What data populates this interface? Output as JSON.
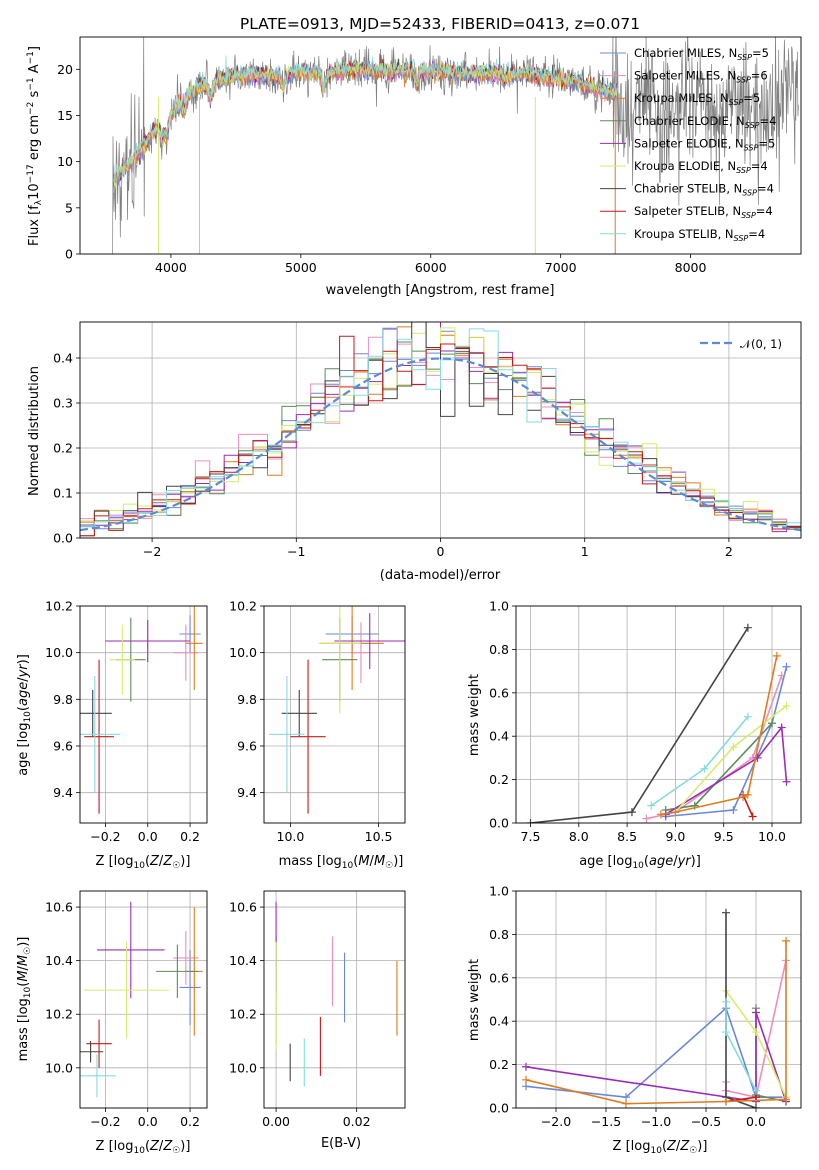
{
  "colors": [
    "#6b88d6",
    "#ea8fc0",
    "#e07b20",
    "#5b8c5b",
    "#9a2db8",
    "#d6ec6a",
    "#444444",
    "#c41a1a",
    "#86dbe0"
  ],
  "chart_data": [
    {
      "id": "spectrum",
      "type": "line",
      "title": "PLATE=0913, MJD=52433, FIBERID=0413, z=0.071",
      "xlabel": "wavelength [Angstrom, rest frame]",
      "ylabel": "Flux [fλ10⁻¹⁷ erg cm⁻² s⁻¹ A⁻¹]",
      "xlim": [
        3300,
        8850
      ],
      "ylim": [
        0,
        23.5
      ],
      "xticks": [
        "4000",
        "5000",
        "6000",
        "7000",
        "8000"
      ],
      "yticks": [
        "0",
        "5",
        "10",
        "15",
        "20"
      ],
      "legend_position": "upper-right",
      "series": [
        {
          "name": "Chabrier MILES, N_SSP=5"
        },
        {
          "name": "Salpeter MILES, N_SSP=6"
        },
        {
          "name": "Kroupa MILES, N_SSP=5"
        },
        {
          "name": "Chabrier ELODIE, N_SSP=4"
        },
        {
          "name": "Salpeter ELODIE, N_SSP=5"
        },
        {
          "name": "Kroupa ELODIE, N_SSP=4"
        },
        {
          "name": "Chabrier STELIB, N_SSP=4"
        },
        {
          "name": "Salpeter STELIB, N_SSP=4"
        },
        {
          "name": "Kroupa STELIB, N_SSP=4"
        }
      ],
      "continuum_points": [
        [
          3550,
          8
        ],
        [
          3700,
          10
        ],
        [
          3850,
          13
        ],
        [
          3950,
          14
        ],
        [
          4050,
          16
        ],
        [
          4200,
          18
        ],
        [
          4400,
          19
        ],
        [
          4600,
          19.5
        ],
        [
          4861,
          19.2
        ],
        [
          5000,
          19.8
        ],
        [
          5175,
          19.5
        ],
        [
          5400,
          20
        ],
        [
          5890,
          19.8
        ],
        [
          6000,
          19.8
        ],
        [
          6300,
          19.6
        ],
        [
          6563,
          19.5
        ],
        [
          6800,
          19.3
        ],
        [
          7000,
          19
        ],
        [
          7200,
          18.3
        ],
        [
          7400,
          17.5
        ]
      ]
    },
    {
      "id": "residuals",
      "type": "histogram",
      "xlabel": "(data-model)/error",
      "ylabel": "Normed distribution",
      "xlim": [
        -2.5,
        2.5
      ],
      "ylim": [
        0,
        0.48
      ],
      "xticks": [
        "−2",
        "−1",
        "0",
        "1",
        "2"
      ],
      "yticks": [
        "0.0",
        "0.1",
        "0.2",
        "0.3",
        "0.4"
      ],
      "reference": {
        "label": "𝒩(0, 1)",
        "mean": 0,
        "sigma": 1
      },
      "bin_width": 0.1
    },
    {
      "id": "age-vs-Z",
      "type": "errorbar",
      "xlabel": "Z [log10(Z/Z☉)]",
      "ylabel": "age [log10(age/yr)]",
      "xlim": [
        -0.32,
        0.28
      ],
      "ylim": [
        9.27,
        10.2
      ],
      "xticks": [
        "−0.2",
        "0.0",
        "0.2"
      ],
      "yticks": [
        "9.4",
        "9.6",
        "9.8",
        "10.0",
        "10.2"
      ],
      "points": [
        {
          "x": 0.2,
          "xerr": 0.05,
          "y": 10.08,
          "yerr": 0.08
        },
        {
          "x": 0.18,
          "xerr": 0.06,
          "y": 10.0,
          "yerr": 0.12
        },
        {
          "x": 0.22,
          "xerr": 0.04,
          "y": 10.04,
          "yerr": 0.2
        },
        {
          "x": -0.08,
          "xerr": 0.07,
          "y": 9.97,
          "yerr": 0.18
        },
        {
          "x": 0.0,
          "xerr": 0.2,
          "y": 10.05,
          "yerr": 0.09
        },
        {
          "x": -0.12,
          "xerr": 0.06,
          "y": 9.97,
          "yerr": 0.15
        },
        {
          "x": -0.26,
          "xerr": 0.09,
          "y": 9.74,
          "yerr": 0.1
        },
        {
          "x": -0.23,
          "xerr": 0.07,
          "y": 9.64,
          "yerr": 0.33
        },
        {
          "x": -0.25,
          "xerr": 0.12,
          "y": 9.65,
          "yerr": 0.25
        }
      ]
    },
    {
      "id": "age-vs-mass",
      "type": "errorbar",
      "xlabel": "mass [log10(M/M☉)]",
      "xlim": [
        9.85,
        10.65
      ],
      "ylim": [
        9.27,
        10.2
      ],
      "xticks": [
        "10.0",
        "10.5"
      ],
      "yticks": [
        "9.4",
        "9.6",
        "9.8",
        "10.0",
        "10.2"
      ],
      "points": [
        {
          "x": 10.35,
          "xerr": 0.15,
          "y": 10.08,
          "yerr": 0.08
        },
        {
          "x": 10.4,
          "xerr": 0.06,
          "y": 10.0,
          "yerr": 0.13
        },
        {
          "x": 10.35,
          "xerr": 0.18,
          "y": 10.04,
          "yerr": 0.2
        },
        {
          "x": 10.28,
          "xerr": 0.1,
          "y": 9.97,
          "yerr": 0.18
        },
        {
          "x": 10.45,
          "xerr": 0.2,
          "y": 10.05,
          "yerr": 0.12
        },
        {
          "x": 10.28,
          "xerr": 0.12,
          "y": 10.04,
          "yerr": 0.3
        },
        {
          "x": 10.05,
          "xerr": 0.1,
          "y": 9.74,
          "yerr": 0.1
        },
        {
          "x": 10.1,
          "xerr": 0.1,
          "y": 9.64,
          "yerr": 0.33
        },
        {
          "x": 9.98,
          "xerr": 0.1,
          "y": 9.65,
          "yerr": 0.25
        }
      ]
    },
    {
      "id": "massweight-vs-age",
      "type": "line",
      "xlabel": "age [log10(age/yr)]",
      "ylabel": "mass weight",
      "xlim": [
        7.35,
        10.3
      ],
      "ylim": [
        0,
        1
      ],
      "xticks": [
        "7.5",
        "8.0",
        "8.5",
        "9.0",
        "9.5",
        "10.0"
      ],
      "yticks": [
        "0.0",
        "0.2",
        "0.4",
        "0.6",
        "0.8",
        "1.0"
      ],
      "series": [
        {
          "x": [
            8.9,
            9.6,
            10.0,
            10.15
          ],
          "y": [
            0.03,
            0.06,
            0.46,
            0.72
          ]
        },
        {
          "x": [
            8.7,
            9.0,
            9.8,
            10.1
          ],
          "y": [
            0.02,
            0.05,
            0.3,
            0.68
          ]
        },
        {
          "x": [
            8.85,
            9.0,
            9.7,
            9.75,
            10.05
          ],
          "y": [
            0.04,
            0.05,
            0.12,
            0.13,
            0.77
          ]
        },
        {
          "x": [
            8.9,
            9.2,
            10.0
          ],
          "y": [
            0.06,
            0.08,
            0.46
          ]
        },
        {
          "x": [
            8.9,
            9.85,
            10.1,
            10.15
          ],
          "y": [
            0.04,
            0.3,
            0.44,
            0.19
          ]
        },
        {
          "x": [
            9.0,
            9.6,
            10.15
          ],
          "y": [
            0.05,
            0.35,
            0.54
          ]
        },
        {
          "x": [
            7.5,
            8.55,
            9.75
          ],
          "y": [
            0.0,
            0.05,
            0.9
          ]
        },
        {
          "x": [
            9.7,
            9.8
          ],
          "y": [
            0.13,
            0.03
          ]
        },
        {
          "x": [
            8.75,
            9.3,
            9.75
          ],
          "y": [
            0.08,
            0.25,
            0.49
          ]
        }
      ]
    },
    {
      "id": "mass-vs-Z",
      "type": "errorbar",
      "xlabel": "Z [log10(Z/Z☉)]",
      "ylabel": "mass [log10(M/M☉)]",
      "xlim": [
        -0.32,
        0.28
      ],
      "ylim": [
        9.85,
        10.66
      ],
      "xticks": [
        "−0.2",
        "0.0",
        "0.2"
      ],
      "yticks": [
        "10.0",
        "10.2",
        "10.4",
        "10.6"
      ],
      "points": [
        {
          "x": 0.2,
          "xerr": 0.05,
          "y": 10.3,
          "yerr": 0.14
        },
        {
          "x": 0.18,
          "xerr": 0.06,
          "y": 10.41,
          "yerr": 0.1
        },
        {
          "x": 0.22,
          "xerr": 0.04,
          "y": 10.36,
          "yerr": 0.24
        },
        {
          "x": 0.14,
          "xerr": 0.1,
          "y": 10.36,
          "yerr": 0.1
        },
        {
          "x": -0.08,
          "xerr": 0.16,
          "y": 10.44,
          "yerr": 0.18
        },
        {
          "x": -0.1,
          "xerr": 0.2,
          "y": 10.29,
          "yerr": 0.18
        },
        {
          "x": -0.27,
          "xerr": 0.06,
          "y": 10.06,
          "yerr": 0.04
        },
        {
          "x": -0.23,
          "xerr": 0.06,
          "y": 10.09,
          "yerr": 0.09
        },
        {
          "x": -0.24,
          "xerr": 0.09,
          "y": 9.97,
          "yerr": 0.08
        }
      ]
    },
    {
      "id": "mass-vs-ebv",
      "type": "errorbar",
      "xlabel": "E(B-V)",
      "xlim": [
        -0.003,
        0.032
      ],
      "ylim": [
        9.85,
        10.66
      ],
      "xticks": [
        "0.00",
        "0.02"
      ],
      "yticks": [
        "10.0",
        "10.2",
        "10.4",
        "10.6"
      ],
      "points": [
        {
          "x": 0.017,
          "y": 10.3,
          "yerr": 0.13
        },
        {
          "x": 0.014,
          "y": 10.36,
          "yerr": 0.13
        },
        {
          "x": 0.03,
          "y": 10.26,
          "yerr": 0.14
        },
        {
          "x": 0.0,
          "y": 10.29,
          "yerr": 0.2
        },
        {
          "x": 0.0,
          "y": 10.45,
          "yerr": 0.17
        },
        {
          "x": 0.0,
          "y": 10.27,
          "yerr": 0.2
        },
        {
          "x": 0.0035,
          "y": 10.02,
          "yerr": 0.07
        },
        {
          "x": 0.011,
          "y": 10.08,
          "yerr": 0.11
        },
        {
          "x": 0.007,
          "y": 10.02,
          "yerr": 0.09
        }
      ]
    },
    {
      "id": "massweight-vs-Z",
      "type": "line",
      "xlabel": "Z [log10(Z/Z☉)]",
      "ylabel": "mass weight",
      "xlim": [
        -2.4,
        0.45
      ],
      "ylim": [
        0,
        1
      ],
      "xticks": [
        "−2.0",
        "−1.5",
        "−1.0",
        "−0.5",
        "0.0"
      ],
      "yticks": [
        "0.0",
        "0.2",
        "0.4",
        "0.6",
        "0.8",
        "1.0"
      ],
      "series": [
        {
          "x": [
            -2.3,
            -1.3,
            -0.3,
            0.0,
            0.3
          ],
          "y": [
            0.1,
            0.05,
            0.46,
            0.05,
            0.05
          ]
        },
        {
          "x": [
            -0.3,
            -0.3,
            0.0,
            0.3
          ],
          "y": [
            0.12,
            0.08,
            0.05,
            0.68
          ]
        },
        {
          "x": [
            -2.3,
            -1.3,
            -0.3,
            0.3,
            0.3
          ],
          "y": [
            0.13,
            0.02,
            0.03,
            0.04,
            0.77
          ]
        },
        {
          "x": [
            0.0,
            0.0,
            0.3
          ],
          "y": [
            0.46,
            0.06,
            0.03
          ]
        },
        {
          "x": [
            -2.3,
            0.0,
            0.0,
            0.3
          ],
          "y": [
            0.19,
            0.03,
            0.44,
            0.03
          ]
        },
        {
          "x": [
            -0.3,
            0.0,
            0.3
          ],
          "y": [
            0.54,
            0.35,
            0.05
          ]
        },
        {
          "x": [
            -0.3,
            -0.3,
            0.0
          ],
          "y": [
            0.9,
            0.05,
            0.0
          ]
        },
        {
          "x": [
            -0.3,
            0.0
          ],
          "y": [
            0.03,
            0.05
          ]
        },
        {
          "x": [
            -0.3,
            -0.3,
            0.0
          ],
          "y": [
            0.49,
            0.35,
            0.08
          ]
        }
      ]
    }
  ]
}
